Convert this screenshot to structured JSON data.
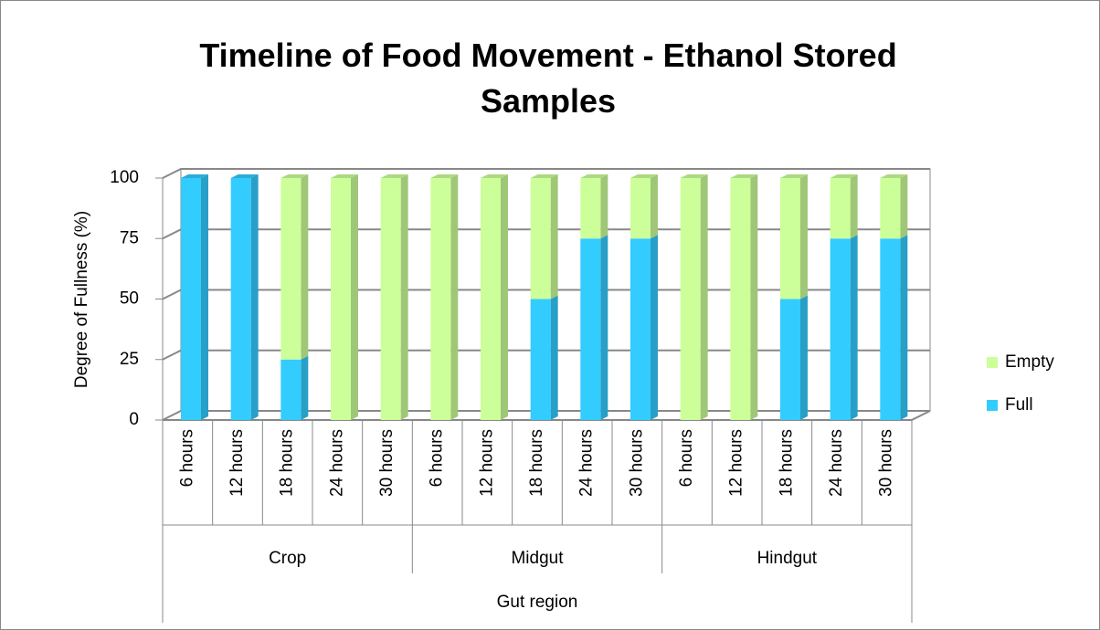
{
  "chart_data": {
    "type": "bar3d_stacked",
    "title": "Timeline of Food Movement - Ethanol Stored Samples",
    "y_label": "Degree of Fullness (%)",
    "x_label": "Gut region",
    "categories": [
      "6 hours",
      "12 hours",
      "18 hours",
      "24 hours",
      "30 hours",
      "6 hours",
      "12 hours",
      "18 hours",
      "24 hours",
      "30 hours",
      "6 hours",
      "12 hours",
      "18 hours",
      "24 hours",
      "30 hours"
    ],
    "groups": [
      "Crop",
      "Midgut",
      "Hindgut"
    ],
    "series": [
      {
        "name": "Full",
        "color": "#33ccff",
        "values": [
          100,
          100,
          25,
          0,
          0,
          0,
          0,
          50,
          75,
          75,
          0,
          0,
          50,
          75,
          75
        ]
      },
      {
        "name": "Empty",
        "color": "#ccff99",
        "values": [
          0,
          0,
          75,
          100,
          100,
          100,
          100,
          50,
          25,
          25,
          100,
          100,
          50,
          25,
          25
        ]
      }
    ],
    "ylim": [
      0,
      100
    ],
    "yticks": [
      0,
      25,
      50,
      75,
      100
    ],
    "grid": true
  }
}
